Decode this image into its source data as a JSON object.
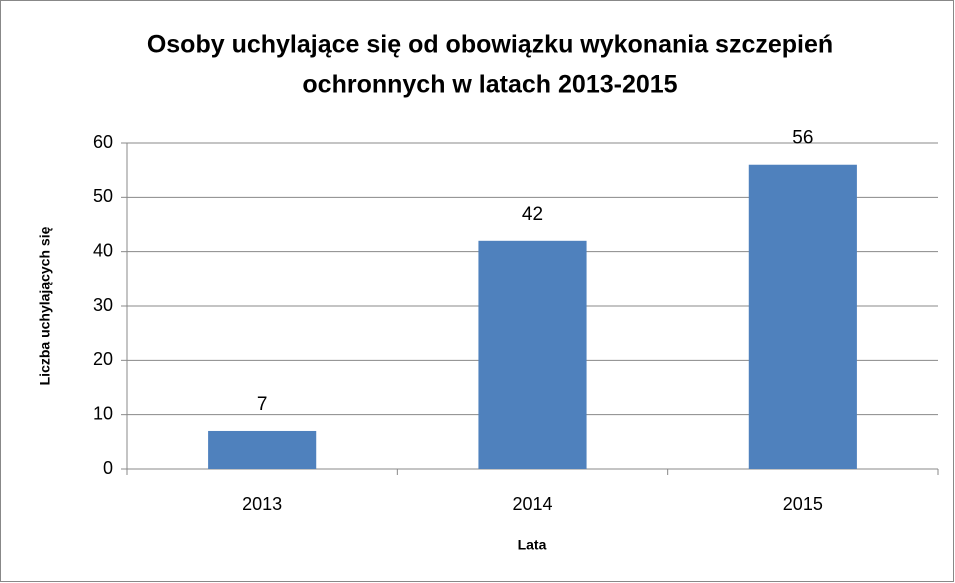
{
  "chart_data": {
    "type": "bar",
    "title": [
      "Osoby uchylające się od obowiązku wykonania szczepień",
      "ochronnych w latach 2013-2015"
    ],
    "xlabel": "Lata",
    "ylabel": "Liczba uchylających się",
    "categories": [
      "2013",
      "2014",
      "2015"
    ],
    "values": [
      7,
      42,
      56
    ],
    "color": "#4f81bd",
    "ylim": [
      0,
      60
    ],
    "yticks": [
      0,
      10,
      20,
      30,
      40,
      50,
      60
    ],
    "grid": true
  }
}
